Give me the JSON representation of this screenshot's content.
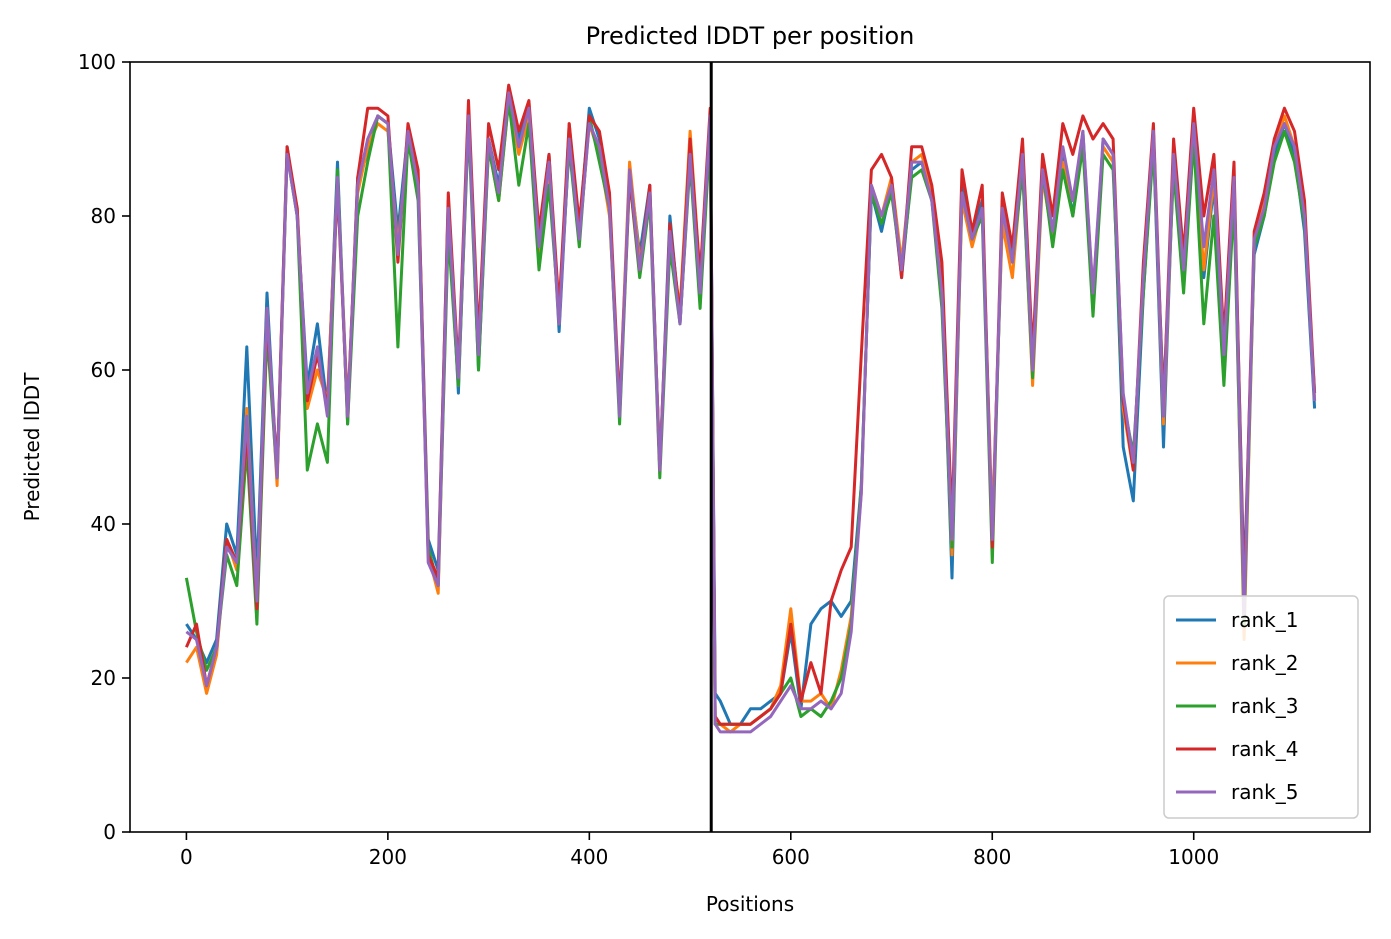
{
  "chart_data": {
    "type": "line",
    "title": "Predicted lDDT per position",
    "xlabel": "Positions",
    "ylabel": "Predicted lDDT",
    "xlim": [
      -56,
      1175
    ],
    "ylim": [
      0,
      100
    ],
    "xticks": [
      0,
      200,
      400,
      600,
      800,
      1000
    ],
    "yticks": [
      0,
      20,
      40,
      60,
      80,
      100
    ],
    "xtick_labels": [
      "0",
      "200",
      "400",
      "600",
      "800",
      "1000"
    ],
    "ytick_labels": [
      "0",
      "20",
      "40",
      "60",
      "80",
      "100"
    ],
    "grid": false,
    "legend_position": "lower right",
    "vline": {
      "x": 521,
      "color": "#000000"
    },
    "x": [
      0,
      10,
      20,
      30,
      40,
      50,
      60,
      70,
      80,
      90,
      100,
      110,
      120,
      130,
      140,
      150,
      160,
      170,
      180,
      190,
      200,
      210,
      220,
      230,
      240,
      250,
      260,
      270,
      280,
      290,
      300,
      310,
      320,
      330,
      340,
      350,
      360,
      370,
      380,
      390,
      400,
      410,
      420,
      430,
      440,
      450,
      460,
      470,
      480,
      490,
      500,
      510,
      520,
      525,
      530,
      540,
      550,
      560,
      570,
      580,
      590,
      600,
      610,
      620,
      630,
      640,
      650,
      660,
      670,
      680,
      690,
      700,
      710,
      720,
      730,
      740,
      750,
      760,
      770,
      780,
      790,
      800,
      810,
      820,
      830,
      840,
      850,
      860,
      870,
      880,
      890,
      900,
      910,
      920,
      930,
      940,
      950,
      960,
      970,
      980,
      990,
      1000,
      1010,
      1020,
      1030,
      1040,
      1050,
      1060,
      1070,
      1080,
      1090,
      1100,
      1110,
      1120
    ],
    "series": [
      {
        "name": "rank_1",
        "color": "#1f77b4",
        "values": [
          27,
          25,
          22,
          25,
          40,
          36,
          63,
          33,
          70,
          46,
          89,
          80,
          58,
          66,
          55,
          87,
          53,
          85,
          88,
          93,
          92,
          78,
          91,
          85,
          38,
          34,
          82,
          57,
          94,
          60,
          90,
          84,
          96,
          90,
          94,
          77,
          88,
          65,
          90,
          78,
          94,
          90,
          82,
          54,
          86,
          75,
          84,
          47,
          80,
          66,
          88,
          70,
          93,
          18,
          17,
          14,
          14,
          16,
          16,
          17,
          18,
          26,
          16,
          27,
          29,
          30,
          28,
          30,
          45,
          83,
          78,
          84,
          72,
          86,
          87,
          82,
          72,
          33,
          84,
          78,
          82,
          38,
          80,
          75,
          88,
          60,
          86,
          78,
          88,
          80,
          91,
          68,
          90,
          88,
          50,
          43,
          70,
          90,
          50,
          88,
          72,
          90,
          72,
          84,
          60,
          85,
          32,
          75,
          80,
          88,
          92,
          88,
          78,
          55
        ]
      },
      {
        "name": "rank_2",
        "color": "#ff7f0e",
        "values": [
          22,
          24,
          18,
          23,
          38,
          34,
          55,
          30,
          68,
          45,
          88,
          81,
          55,
          60,
          56,
          85,
          55,
          83,
          89,
          92,
          91,
          76,
          90,
          84,
          36,
          31,
          80,
          58,
          93,
          62,
          89,
          82,
          95,
          88,
          93,
          75,
          86,
          66,
          92,
          77,
          92,
          88,
          80,
          55,
          87,
          74,
          82,
          48,
          77,
          68,
          91,
          72,
          92,
          14,
          14,
          13,
          14,
          14,
          15,
          16,
          19,
          29,
          17,
          17,
          18,
          16,
          21,
          28,
          44,
          84,
          80,
          85,
          74,
          87,
          88,
          83,
          70,
          36,
          82,
          76,
          81,
          40,
          79,
          72,
          87,
          58,
          85,
          77,
          87,
          82,
          90,
          70,
          89,
          87,
          55,
          47,
          72,
          91,
          53,
          87,
          74,
          91,
          73,
          85,
          62,
          84,
          25,
          76,
          82,
          89,
          93,
          89,
          80,
          56
        ]
      },
      {
        "name": "rank_3",
        "color": "#2ca02c",
        "values": [
          33,
          26,
          21,
          24,
          36,
          32,
          50,
          27,
          65,
          46,
          88,
          80,
          47,
          53,
          48,
          86,
          53,
          80,
          87,
          93,
          92,
          63,
          90,
          82,
          37,
          32,
          78,
          58,
          92,
          60,
          89,
          82,
          95,
          84,
          92,
          73,
          84,
          67,
          89,
          76,
          93,
          87,
          81,
          53,
          85,
          72,
          82,
          46,
          76,
          66,
          87,
          68,
          91,
          14,
          14,
          14,
          14,
          14,
          15,
          16,
          18,
          20,
          15,
          16,
          15,
          17,
          20,
          27,
          45,
          83,
          79,
          83,
          73,
          85,
          86,
          82,
          68,
          37,
          83,
          77,
          80,
          35,
          82,
          74,
          86,
          59,
          86,
          76,
          86,
          80,
          89,
          67,
          88,
          86,
          56,
          49,
          70,
          89,
          56,
          86,
          70,
          90,
          66,
          80,
          58,
          82,
          27,
          76,
          80,
          87,
          91,
          87,
          79,
          57
        ]
      },
      {
        "name": "rank_4",
        "color": "#d62728",
        "values": [
          24,
          27,
          19,
          24,
          38,
          35,
          52,
          29,
          67,
          47,
          89,
          81,
          56,
          62,
          55,
          84,
          54,
          85,
          94,
          94,
          93,
          74,
          92,
          86,
          36,
          33,
          83,
          60,
          95,
          64,
          92,
          86,
          97,
          91,
          95,
          78,
          88,
          68,
          92,
          79,
          93,
          91,
          83,
          55,
          85,
          73,
          84,
          47,
          79,
          67,
          90,
          72,
          94,
          15,
          14,
          14,
          14,
          14,
          15,
          16,
          18,
          27,
          17,
          22,
          18,
          30,
          34,
          37,
          62,
          86,
          88,
          85,
          72,
          89,
          89,
          84,
          74,
          40,
          86,
          78,
          84,
          37,
          83,
          76,
          90,
          62,
          88,
          80,
          92,
          88,
          93,
          90,
          92,
          90,
          56,
          47,
          74,
          92,
          55,
          90,
          75,
          94,
          80,
          88,
          64,
          87,
          30,
          78,
          83,
          90,
          94,
          91,
          82,
          57
        ]
      },
      {
        "name": "rank_5",
        "color": "#9467bd",
        "values": [
          26,
          25,
          19,
          24,
          37,
          35,
          54,
          30,
          68,
          46,
          88,
          80,
          57,
          63,
          54,
          85,
          54,
          84,
          90,
          93,
          92,
          75,
          91,
          84,
          35,
          32,
          81,
          59,
          93,
          62,
          90,
          83,
          96,
          89,
          94,
          76,
          87,
          66,
          90,
          77,
          92,
          89,
          81,
          54,
          86,
          73,
          83,
          47,
          78,
          66,
          88,
          70,
          93,
          14,
          13,
          13,
          13,
          13,
          14,
          15,
          17,
          19,
          16,
          16,
          17,
          16,
          18,
          26,
          44,
          84,
          80,
          84,
          73,
          87,
          87,
          82,
          70,
          38,
          83,
          77,
          81,
          38,
          81,
          74,
          88,
          60,
          86,
          78,
          89,
          82,
          91,
          70,
          90,
          88,
          57,
          48,
          72,
          91,
          54,
          88,
          73,
          92,
          76,
          86,
          62,
          85,
          28,
          77,
          81,
          89,
          92,
          89,
          80,
          56
        ]
      }
    ]
  }
}
